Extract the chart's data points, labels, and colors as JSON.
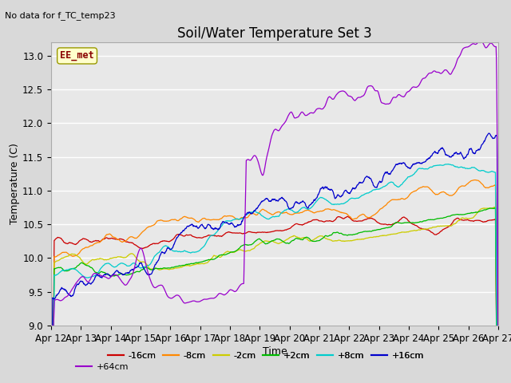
{
  "title": "Soil/Water Temperature Set 3",
  "xlabel": "Time",
  "ylabel": "Temperature (C)",
  "no_data_text": "No data for f_TC_temp23",
  "ee_met_label": "EE_met",
  "ylim": [
    9.0,
    13.2
  ],
  "xtick_labels": [
    "Apr 12",
    "Apr 13",
    "Apr 14",
    "Apr 15",
    "Apr 16",
    "Apr 17",
    "Apr 18",
    "Apr 19",
    "Apr 20",
    "Apr 21",
    "Apr 22",
    "Apr 23",
    "Apr 24",
    "Apr 25",
    "Apr 26",
    "Apr 27"
  ],
  "ytick_labels": [
    "9.0",
    "9.5",
    "10.0",
    "10.5",
    "11.0",
    "11.5",
    "12.0",
    "12.5",
    "13.0"
  ],
  "ytick_values": [
    9.0,
    9.5,
    10.0,
    10.5,
    11.0,
    11.5,
    12.0,
    12.5,
    13.0
  ],
  "series_labels": [
    "-16cm",
    "-8cm",
    "-2cm",
    "+2cm",
    "+8cm",
    "+16cm",
    "+64cm"
  ],
  "series_colors": [
    "#cc0000",
    "#ff8800",
    "#cccc00",
    "#00bb00",
    "#00cccc",
    "#0000cc",
    "#9900cc"
  ],
  "fig_bg_color": "#d9d9d9",
  "plot_bg_color": "#e8e8e8",
  "grid_color": "#ffffff",
  "title_fontsize": 12,
  "axis_fontsize": 9,
  "tick_fontsize": 8.5
}
